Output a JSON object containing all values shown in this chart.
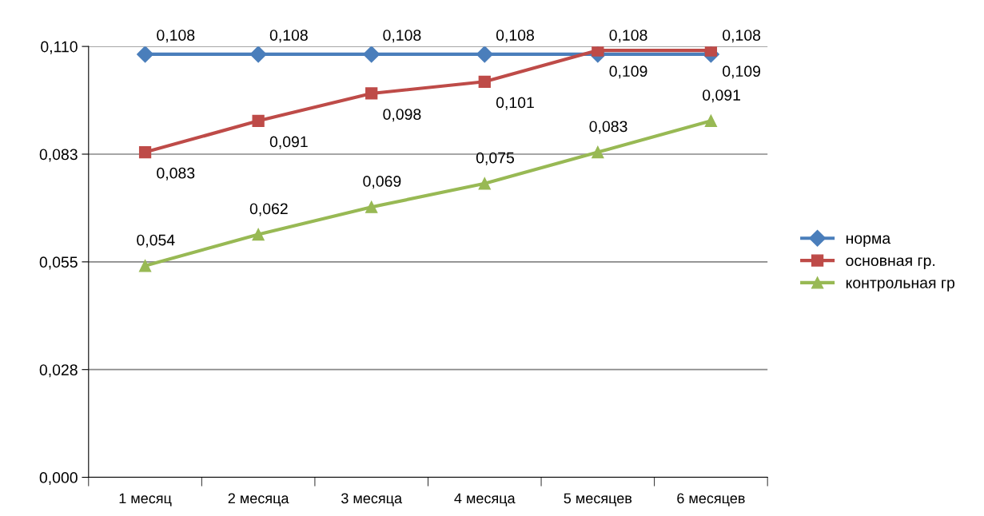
{
  "chart_data": {
    "type": "line",
    "categories": [
      "1 месяц",
      "2 месяца",
      "3 месяца",
      "4 месяца",
      "5 месяцев",
      "6 месяцев"
    ],
    "series": [
      {
        "name": "норма",
        "color": "#4a7ebb",
        "marker": "diamond",
        "values": [
          0.108,
          0.108,
          0.108,
          0.108,
          0.108,
          0.108
        ],
        "value_labels": [
          "0,108",
          "0,108",
          "0,108",
          "0,108",
          "0,108",
          "0,108"
        ]
      },
      {
        "name": "основная гр.",
        "color": "#be4b48",
        "marker": "square",
        "values": [
          0.083,
          0.091,
          0.098,
          0.101,
          0.109,
          0.109
        ],
        "value_labels": [
          "0,083",
          "0,091",
          "0,098",
          "0,101",
          "0,109",
          "0,109"
        ]
      },
      {
        "name": "контрольная гр",
        "color": "#98b954",
        "marker": "triangle",
        "values": [
          0.054,
          0.062,
          0.069,
          0.075,
          0.083,
          0.091
        ],
        "value_labels": [
          "0,054",
          "0,062",
          "0,069",
          "0,075",
          "0,083",
          "0,091"
        ]
      }
    ],
    "ylim": [
      0,
      0.11
    ],
    "yticks": [
      {
        "value": 0,
        "label": "0,000"
      },
      {
        "value": 0.0275,
        "label": "0,028"
      },
      {
        "value": 0.055,
        "label": "0,055"
      },
      {
        "value": 0.0825,
        "label": "0,083"
      },
      {
        "value": 0.11,
        "label": "0,110"
      }
    ],
    "grid": "y",
    "legend": "right",
    "line_style": "solid"
  }
}
